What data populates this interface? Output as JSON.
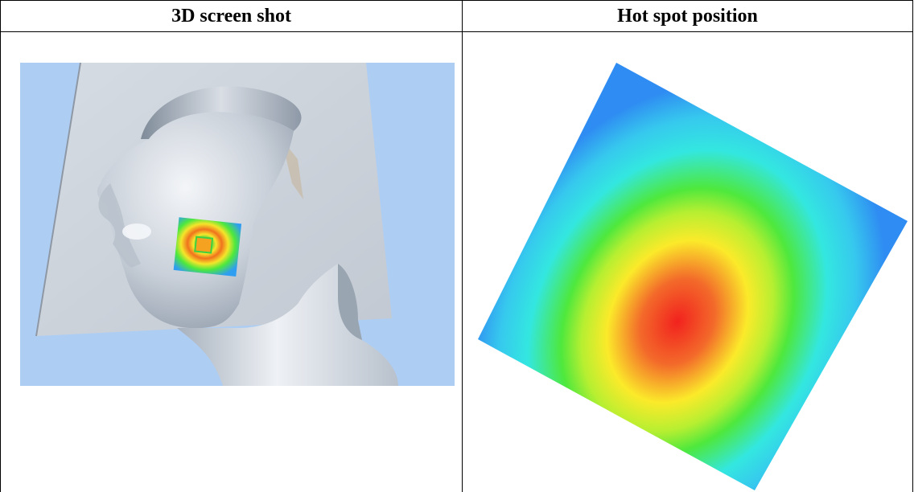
{
  "table": {
    "headers": [
      {
        "label": "3D screen shot"
      },
      {
        "label": "Hot spot position"
      }
    ]
  },
  "figures": {
    "left": {
      "content": "3D head model with colored SAR patch"
    },
    "right": {
      "content": "hot spot color map"
    }
  },
  "colors": {
    "background_blue": "#aecdf3",
    "plate_gray": "#c9d0d9",
    "hot": "#f2221e",
    "warm": "#fbea2a",
    "mid": "#4ee83d",
    "cool": "#33e7e0",
    "cold": "#2f8cf2"
  }
}
